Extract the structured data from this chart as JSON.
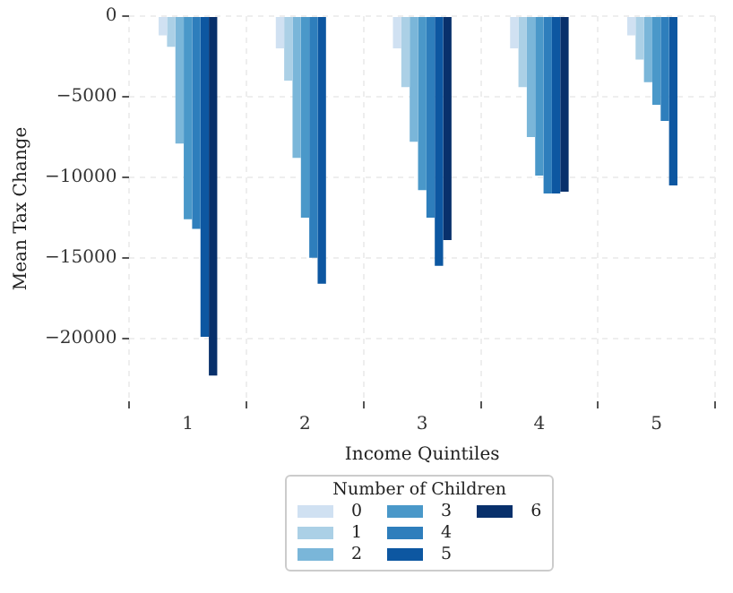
{
  "chart_data": {
    "type": "bar",
    "xlabel": "Income Quintiles",
    "ylabel": "Mean Tax Change",
    "legend_title": "Number of Children",
    "legend": "bottom",
    "grid": true,
    "categories": [
      "1",
      "2",
      "3",
      "4",
      "5"
    ],
    "ylim": [
      -23900,
      0
    ],
    "yticks": [
      {
        "value": 0,
        "label": "0"
      },
      {
        "value": -5000,
        "label": "−5000"
      },
      {
        "value": -10000,
        "label": "−10000"
      },
      {
        "value": -15000,
        "label": "−15000"
      },
      {
        "value": -20000,
        "label": "−20000"
      }
    ],
    "series": [
      {
        "name": "0",
        "color": "#d0e1f2",
        "values": [
          -1200,
          -2000,
          -2000,
          -2000,
          -1200
        ]
      },
      {
        "name": "1",
        "color": "#abd0e6",
        "values": [
          -1900,
          -4000,
          -4400,
          -4400,
          -2700
        ]
      },
      {
        "name": "2",
        "color": "#7ab6d9",
        "values": [
          -7900,
          -8800,
          -7800,
          -7500,
          -4100
        ]
      },
      {
        "name": "3",
        "color": "#4a98c9",
        "values": [
          -12600,
          -12500,
          -10800,
          -9900,
          -5500
        ]
      },
      {
        "name": "4",
        "color": "#2e7ebc",
        "values": [
          -13200,
          -15000,
          -12500,
          -11000,
          -6500
        ]
      },
      {
        "name": "5",
        "color": "#0d57a1",
        "values": [
          -19900,
          -16600,
          -15500,
          -11000,
          -10500
        ]
      },
      {
        "name": "6",
        "color": "#08306b",
        "values": [
          -22300,
          null,
          -13900,
          -10900,
          null
        ]
      }
    ]
  }
}
